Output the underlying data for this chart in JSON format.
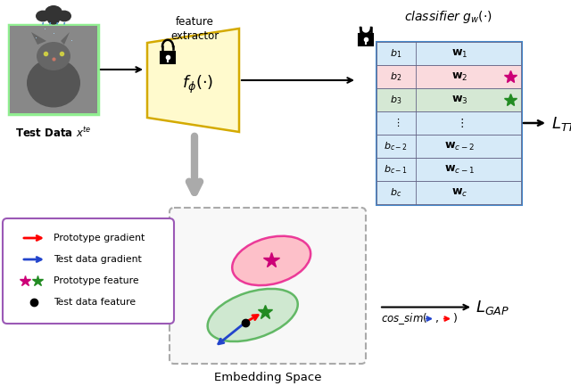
{
  "bg_color": "#ffffff",
  "table_rows": [
    {
      "bias": "$b_1$",
      "weight": "$\\mathbf{w}_1$",
      "color": "#d6eaf8"
    },
    {
      "bias": "$b_2$",
      "weight": "$\\mathbf{w}_2$",
      "color": "#fadadd"
    },
    {
      "bias": "$b_3$",
      "weight": "$\\mathbf{w}_3$",
      "color": "#d5e8d4"
    },
    {
      "bias": "$\\vdots$",
      "weight": "$\\vdots$",
      "color": "#d6eaf8"
    },
    {
      "bias": "$b_{c-2}$",
      "weight": "$\\mathbf{w}_{c-2}$",
      "color": "#d6eaf8"
    },
    {
      "bias": "$b_{c-1}$",
      "weight": "$\\mathbf{w}_{c-1}$",
      "color": "#d6eaf8"
    },
    {
      "bias": "$b_c$",
      "weight": "$\\mathbf{w}_c$",
      "color": "#d6eaf8"
    }
  ]
}
